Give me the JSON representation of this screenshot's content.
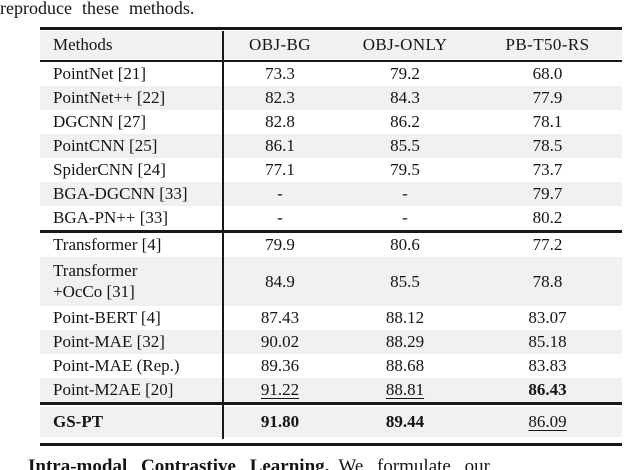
{
  "page": {
    "top_text": "reproduce these methods.",
    "bottom_text_bold": "Intra-modal Contrastive Learning.",
    "bottom_text_rest": "We formulate our"
  },
  "colors": {
    "stripe": "#f1f1f1",
    "rule": "#181818",
    "text": "#141414"
  },
  "table": {
    "header": {
      "methods_label": "Methods",
      "columns": [
        "OBJ-BG",
        "OBJ-ONLY",
        "PB-T50-RS"
      ]
    },
    "sections": [
      {
        "rows": [
          {
            "label": "PointNet [21]",
            "values": [
              "73.3",
              "79.2",
              "68.0"
            ],
            "styles": [
              "plain",
              "plain",
              "plain"
            ],
            "bg": "white"
          },
          {
            "label": "PointNet++ [22]",
            "values": [
              "82.3",
              "84.3",
              "77.9"
            ],
            "styles": [
              "plain",
              "plain",
              "plain"
            ],
            "bg": "gray"
          },
          {
            "label": "DGCNN [27]",
            "values": [
              "82.8",
              "86.2",
              "78.1"
            ],
            "styles": [
              "plain",
              "plain",
              "plain"
            ],
            "bg": "white"
          },
          {
            "label": "PointCNN [25]",
            "values": [
              "86.1",
              "85.5",
              "78.5"
            ],
            "styles": [
              "plain",
              "plain",
              "plain"
            ],
            "bg": "gray"
          },
          {
            "label": "SpiderCNN [24]",
            "values": [
              "77.1",
              "79.5",
              "73.7"
            ],
            "styles": [
              "plain",
              "plain",
              "plain"
            ],
            "bg": "white"
          },
          {
            "label": "BGA-DGCNN [33]",
            "values": [
              "-",
              "-",
              "79.7"
            ],
            "styles": [
              "plain",
              "plain",
              "plain"
            ],
            "bg": "gray"
          },
          {
            "label": "BGA-PN++ [33]",
            "values": [
              "-",
              "-",
              "80.2"
            ],
            "styles": [
              "plain",
              "plain",
              "plain"
            ],
            "bg": "white"
          }
        ]
      },
      {
        "rows": [
          {
            "label": "Transformer [4]",
            "values": [
              "79.9",
              "80.6",
              "77.2"
            ],
            "styles": [
              "plain",
              "plain",
              "plain"
            ],
            "bg": "white"
          },
          {
            "label": "Transformer",
            "label2": "+OcCo [31]",
            "values": [
              "84.9",
              "85.5",
              "78.8"
            ],
            "styles": [
              "plain",
              "plain",
              "plain"
            ],
            "bg": "gray"
          },
          {
            "label": "Point-BERT [4]",
            "values": [
              "87.43",
              "88.12",
              "83.07"
            ],
            "styles": [
              "plain",
              "plain",
              "plain"
            ],
            "bg": "white"
          },
          {
            "label": "Point-MAE [32]",
            "values": [
              "90.02",
              "88.29",
              "85.18"
            ],
            "styles": [
              "plain",
              "plain",
              "plain"
            ],
            "bg": "gray"
          },
          {
            "label": "Point-MAE (Rep.)",
            "values": [
              "89.36",
              "88.68",
              "83.83"
            ],
            "styles": [
              "plain",
              "plain",
              "plain"
            ],
            "bg": "white"
          },
          {
            "label": "Point-M2AE [20]",
            "values": [
              "91.22",
              "88.81",
              "86.43"
            ],
            "styles": [
              "underline",
              "underline",
              "bold"
            ],
            "bg": "gray"
          }
        ]
      },
      {
        "rows": [
          {
            "label": "GS-PT",
            "label_bold": true,
            "last": true,
            "values": [
              "91.80",
              "89.44",
              "86.09"
            ],
            "styles": [
              "bold",
              "bold",
              "underline"
            ],
            "bg": "gray"
          }
        ]
      }
    ]
  }
}
